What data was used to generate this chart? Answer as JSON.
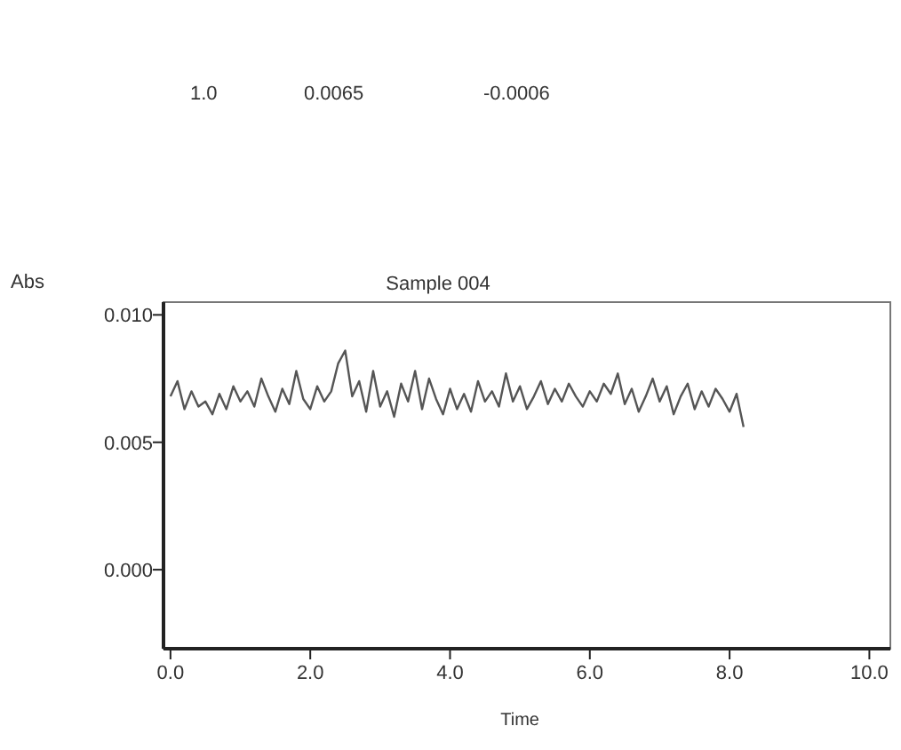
{
  "chart_data": {
    "type": "line",
    "title": "Sample 004",
    "xlabel": "Time",
    "ylabel": "Abs",
    "annotations": [
      "1.0",
      "0.0065",
      "-0.0006"
    ],
    "x": [
      0,
      0.1,
      0.2,
      0.3,
      0.4,
      0.5,
      0.6,
      0.7,
      0.8,
      0.9,
      1.0,
      1.1,
      1.2,
      1.3,
      1.4,
      1.5,
      1.6,
      1.7,
      1.8,
      1.9,
      2.0,
      2.1,
      2.2,
      2.3,
      2.4,
      2.5,
      2.6,
      2.7,
      2.8,
      2.9,
      3.0,
      3.1,
      3.2,
      3.3,
      3.4,
      3.5,
      3.6,
      3.7,
      3.8,
      3.9,
      4.0,
      4.1,
      4.2,
      4.3,
      4.4,
      4.5,
      4.6,
      4.7,
      4.8,
      4.9,
      5.0,
      5.1,
      5.2,
      5.3,
      5.4,
      5.5,
      5.6,
      5.7,
      5.8,
      5.9,
      6.0,
      6.1,
      6.2,
      6.3,
      6.4,
      6.5,
      6.6,
      6.7,
      6.8,
      6.9,
      7.0,
      7.1,
      7.2,
      7.3,
      7.4,
      7.5,
      7.6,
      7.7,
      7.8,
      7.9,
      8.0,
      8.1,
      8.2
    ],
    "series": [
      {
        "color": "#555555",
        "values": [
          0.0068,
          0.0074,
          0.0063,
          0.007,
          0.0064,
          0.0066,
          0.0061,
          0.0069,
          0.0063,
          0.0072,
          0.0066,
          0.007,
          0.0064,
          0.0075,
          0.0068,
          0.0062,
          0.0071,
          0.0065,
          0.0078,
          0.0067,
          0.0063,
          0.0072,
          0.0066,
          0.007,
          0.0081,
          0.0086,
          0.0068,
          0.0074,
          0.0062,
          0.0078,
          0.0064,
          0.007,
          0.006,
          0.0073,
          0.0066,
          0.0078,
          0.0063,
          0.0075,
          0.0067,
          0.0061,
          0.0071,
          0.0063,
          0.0069,
          0.0062,
          0.0074,
          0.0066,
          0.007,
          0.0064,
          0.0077,
          0.0066,
          0.0072,
          0.0063,
          0.0068,
          0.0074,
          0.0065,
          0.0071,
          0.0066,
          0.0073,
          0.0068,
          0.0064,
          0.007,
          0.0066,
          0.0073,
          0.0069,
          0.0077,
          0.0065,
          0.0071,
          0.0062,
          0.0068,
          0.0075,
          0.0066,
          0.0072,
          0.0061,
          0.0068,
          0.0073,
          0.0063,
          0.007,
          0.0064,
          0.0071,
          0.0067,
          0.0062,
          0.0069,
          0.0056
        ]
      }
    ],
    "xlim": [
      -0.1,
      10.3
    ],
    "ylim": [
      -0.0031,
      0.0105
    ],
    "xticks": [
      {
        "value": 0,
        "label": "0.0"
      },
      {
        "value": 2,
        "label": "2.0"
      },
      {
        "value": 4,
        "label": "4.0"
      },
      {
        "value": 6,
        "label": "6.0"
      },
      {
        "value": 8,
        "label": "8.0"
      },
      {
        "value": 10,
        "label": "10.0"
      }
    ],
    "yticks": [
      {
        "value": 0,
        "label": "0.000"
      },
      {
        "value": 0.005,
        "label": "0.005"
      },
      {
        "value": 0.01,
        "label": "0.010"
      }
    ],
    "grid": false
  }
}
